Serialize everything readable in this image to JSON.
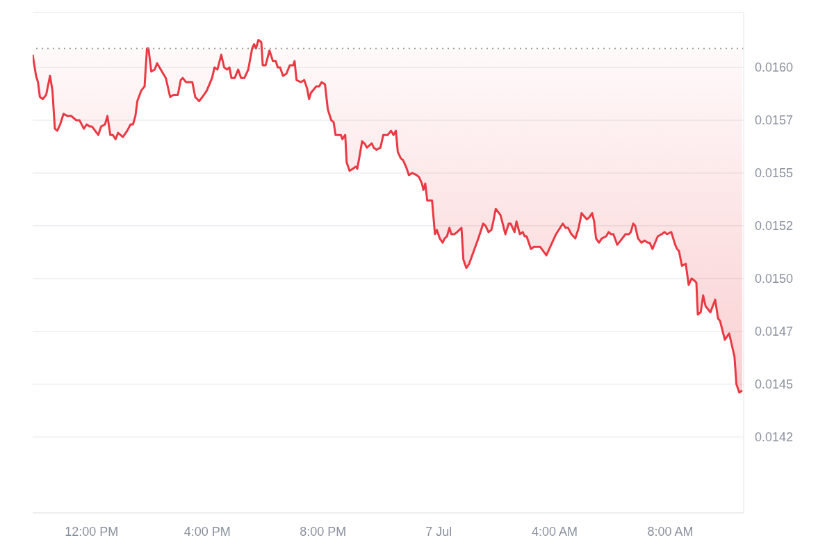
{
  "chart_data": {
    "type": "line",
    "x": [
      "--07-06T09:58",
      "--07-06T10:05",
      "--07-06T10:09",
      "--07-06T10:13",
      "--07-06T10:19",
      "--07-06T10:26",
      "--07-06T10:34",
      "--07-06T10:39",
      "--07-06T10:44",
      "--07-06T10:49",
      "--07-06T10:55",
      "--07-06T11:02",
      "--07-06T11:10",
      "--07-06T11:18",
      "--07-06T11:28",
      "--07-06T11:35",
      "--07-06T11:44",
      "--07-06T11:50",
      "--07-06T11:56",
      "--07-06T12:01",
      "--07-06T12:14",
      "--07-06T12:20",
      "--07-06T12:28",
      "--07-06T12:33",
      "--07-06T12:39",
      "--07-06T12:44",
      "--07-06T12:50",
      "--07-06T12:55",
      "--07-06T13:05",
      "--07-06T13:14",
      "--07-06T13:21",
      "--07-06T13:26",
      "--07-06T13:31",
      "--07-06T13:35",
      "--07-06T13:43",
      "--07-06T13:50",
      "--07-06T13:55",
      "--07-06T13:58",
      "--07-06T14:04",
      "--07-06T14:11",
      "--07-06T14:16",
      "--07-06T14:26",
      "--07-06T14:34",
      "--07-06T14:43",
      "--07-06T14:50",
      "--07-06T14:59",
      "--07-06T15:05",
      "--07-06T15:09",
      "--07-06T15:16",
      "--07-06T15:29",
      "--07-06T15:35",
      "--07-06T15:43",
      "--07-06T15:50",
      "--07-06T15:59",
      "--07-06T16:10",
      "--07-06T16:15",
      "--07-06T16:21",
      "--07-06T16:29",
      "--07-06T16:35",
      "--07-06T16:41",
      "--07-06T16:46",
      "--07-06T16:50",
      "--07-06T16:57",
      "--07-06T17:04",
      "--07-06T17:10",
      "--07-06T17:17",
      "--07-06T17:25",
      "--07-06T17:33",
      "--07-06T17:37",
      "--07-06T17:41",
      "--07-06T17:46",
      "--07-06T17:52",
      "--07-06T17:55",
      "--07-06T18:01",
      "--07-06T18:09",
      "--07-06T18:16",
      "--07-06T18:22",
      "--07-06T18:26",
      "--07-06T18:31",
      "--07-06T18:37",
      "--07-06T18:44",
      "--07-06T18:51",
      "--07-06T18:58",
      "--07-06T19:01",
      "--07-06T19:05",
      "--07-06T19:14",
      "--07-06T19:21",
      "--07-06T19:27",
      "--07-06T19:31",
      "--07-06T19:35",
      "--07-06T19:46",
      "--07-06T19:52",
      "--07-06T19:57",
      "--07-06T20:04",
      "--07-06T20:10",
      "--07-06T20:17",
      "--07-06T20:22",
      "--07-06T20:26",
      "--07-06T20:32",
      "--07-06T20:37",
      "--07-06T20:40",
      "--07-06T20:46",
      "--07-06T20:49",
      "--07-06T20:55",
      "--07-06T21:02",
      "--07-06T21:08",
      "--07-06T21:11",
      "--07-06T21:15",
      "--07-06T21:21",
      "--07-06T21:26",
      "--07-06T21:31",
      "--07-06T21:41",
      "--07-06T21:45",
      "--07-06T21:51",
      "--07-06T21:59",
      "--07-06T22:05",
      "--07-06T22:14",
      "--07-06T22:21",
      "--07-06T22:26",
      "--07-06T22:31",
      "--07-06T22:35",
      "--07-06T22:41",
      "--07-06T22:46",
      "--07-06T22:52",
      "--07-06T22:58",
      "--07-06T23:05",
      "--07-06T23:14",
      "--07-06T23:19",
      "--07-06T23:25",
      "--07-06T23:28",
      "--07-06T23:32",
      "--07-06T23:36",
      "--07-06T23:46",
      "--07-06T23:52",
      "--07-06T23:56",
      "--07-07T00:02",
      "--07-07T00:08",
      "--07-07T00:12",
      "--07-07T00:17",
      "--07-07T00:22",
      "--07-07T00:26",
      "--07-07T00:32",
      "--07-07T00:38",
      "--07-07T00:47",
      "--07-07T00:51",
      "--07-07T00:57",
      "--07-07T01:03",
      "--07-07T01:14",
      "--07-07T01:22",
      "--07-07T01:32",
      "--07-07T01:37",
      "--07-07T01:43",
      "--07-07T01:49",
      "--07-07T01:53",
      "--07-07T01:58",
      "--07-07T02:08",
      "--07-07T02:18",
      "--07-07T02:25",
      "--07-07T02:29",
      "--07-07T02:37",
      "--07-07T02:41",
      "--07-07T02:48",
      "--07-07T02:54",
      "--07-07T02:58",
      "--07-07T03:02",
      "--07-07T03:11",
      "--07-07T03:17",
      "--07-07T03:30",
      "--07-07T03:43",
      "--07-07T03:53",
      "--07-07T04:03",
      "--07-07T04:17",
      "--07-07T04:23",
      "--07-07T04:28",
      "--07-07T04:35",
      "--07-07T04:43",
      "--07-07T04:50",
      "--07-07T04:56",
      "--07-07T05:07",
      "--07-07T05:12",
      "--07-07T05:18",
      "--07-07T05:22",
      "--07-07T05:26",
      "--07-07T05:32",
      "--07-07T05:38",
      "--07-07T05:47",
      "--07-07T05:52",
      "--07-07T05:57",
      "--07-07T06:02",
      "--07-07T06:10",
      "--07-07T06:17",
      "--07-07T06:27",
      "--07-07T06:34",
      "--07-07T06:38",
      "--07-07T06:43",
      "--07-07T06:47",
      "--07-07T06:53",
      "--07-07T07:00",
      "--07-07T07:07",
      "--07-07T07:13",
      "--07-07T07:17",
      "--07-07T07:23",
      "--07-07T07:34",
      "--07-07T07:42",
      "--07-07T07:48",
      "--07-07T07:53",
      "--07-07T08:02",
      "--07-07T08:10",
      "--07-07T08:14",
      "--07-07T08:18",
      "--07-07T08:24",
      "--07-07T08:32",
      "--07-07T08:38",
      "--07-07T08:44",
      "--07-07T08:50",
      "--07-07T08:54",
      "--07-07T08:57",
      "--07-07T09:03",
      "--07-07T09:08",
      "--07-07T09:13",
      "--07-07T09:23",
      "--07-07T09:33",
      "--07-07T09:39",
      "--07-07T09:43",
      "--07-07T09:53",
      "--07-07T10:02",
      "--07-07T10:08",
      "--07-07T10:13",
      "--07-07T10:17",
      "--07-07T10:23",
      "--07-07T10:29"
    ],
    "series": [
      {
        "color": "#ea3943",
        "values": [
          0.01606,
          0.01596,
          0.01593,
          0.01586,
          0.01585,
          0.01587,
          0.01596,
          0.01589,
          0.01571,
          0.0157,
          0.01573,
          0.01578,
          0.01577,
          0.01577,
          0.01575,
          0.01575,
          0.01571,
          0.01573,
          0.01572,
          0.01572,
          0.01568,
          0.01572,
          0.01573,
          0.01577,
          0.01568,
          0.01568,
          0.01566,
          0.01569,
          0.01567,
          0.0157,
          0.01573,
          0.01573,
          0.01577,
          0.01584,
          0.01589,
          0.01591,
          0.01609,
          0.01609,
          0.01598,
          0.01599,
          0.01602,
          0.01598,
          0.01595,
          0.01586,
          0.01587,
          0.01587,
          0.01594,
          0.01595,
          0.01593,
          0.01593,
          0.01586,
          0.01584,
          0.01586,
          0.01589,
          0.01595,
          0.016,
          0.01599,
          0.01606,
          0.016,
          0.01599,
          0.016,
          0.01595,
          0.01595,
          0.01599,
          0.01595,
          0.01595,
          0.01599,
          0.01609,
          0.01611,
          0.01609,
          0.01613,
          0.01612,
          0.01601,
          0.01601,
          0.01608,
          0.01603,
          0.01603,
          0.016,
          0.016,
          0.01596,
          0.01597,
          0.01601,
          0.01601,
          0.01603,
          0.01594,
          0.01593,
          0.01594,
          0.0159,
          0.01585,
          0.01588,
          0.01591,
          0.01591,
          0.01593,
          0.01592,
          0.0158,
          0.01575,
          0.01574,
          0.01568,
          0.01568,
          0.01568,
          0.01566,
          0.01568,
          0.01555,
          0.01551,
          0.01552,
          0.01553,
          0.01552,
          0.01557,
          0.01565,
          0.01564,
          0.01562,
          0.01564,
          0.01562,
          0.01561,
          0.01562,
          0.01568,
          0.01568,
          0.0157,
          0.01568,
          0.0157,
          0.0156,
          0.01557,
          0.01556,
          0.01553,
          0.01549,
          0.0155,
          0.01549,
          0.01548,
          0.01545,
          0.01542,
          0.01545,
          0.01537,
          0.01537,
          0.01521,
          0.01523,
          0.01519,
          0.01517,
          0.01519,
          0.0152,
          0.01524,
          0.01521,
          0.01521,
          0.01522,
          0.01524,
          0.01509,
          0.01505,
          0.01507,
          0.01514,
          0.01519,
          0.01526,
          0.01525,
          0.01522,
          0.01523,
          0.01527,
          0.01533,
          0.0153,
          0.01521,
          0.01526,
          0.01526,
          0.01522,
          0.01527,
          0.01521,
          0.01522,
          0.0152,
          0.0152,
          0.01514,
          0.01515,
          0.01515,
          0.01511,
          0.01516,
          0.01521,
          0.01526,
          0.01524,
          0.01524,
          0.01521,
          0.01519,
          0.01524,
          0.01531,
          0.01528,
          0.01529,
          0.01531,
          0.01527,
          0.01519,
          0.01517,
          0.01519,
          0.0152,
          0.01522,
          0.01521,
          0.01521,
          0.01516,
          0.01518,
          0.01521,
          0.01521,
          0.01522,
          0.01526,
          0.01525,
          0.01519,
          0.01517,
          0.01518,
          0.01517,
          0.01517,
          0.01514,
          0.0152,
          0.01521,
          0.01522,
          0.01521,
          0.01522,
          0.01516,
          0.01514,
          0.01513,
          0.01506,
          0.01507,
          0.01497,
          0.015,
          0.01499,
          0.01498,
          0.01483,
          0.01484,
          0.01492,
          0.01487,
          0.01484,
          0.0149,
          0.01481,
          0.0148,
          0.01471,
          0.01474,
          0.01468,
          0.01463,
          0.0145,
          0.01446,
          0.01447
        ]
      }
    ],
    "xlim": [
      "--07-06T09:58",
      "--07-07T10:32"
    ],
    "xticks": [
      {
        "value": "--07-06T12:00",
        "label": "12:00 PM"
      },
      {
        "value": "--07-06T16:00",
        "label": "4:00 PM"
      },
      {
        "value": "--07-06T20:00",
        "label": "8:00 PM"
      },
      {
        "value": "--07-07T00:00",
        "label": "7 Jul"
      },
      {
        "value": "--07-07T04:00",
        "label": "4:00 AM"
      },
      {
        "value": "--07-07T08:00",
        "label": "8:00 AM"
      }
    ],
    "ylim": [
      0.01389,
      0.01626
    ],
    "yticks": [
      {
        "value": 0.01425,
        "label": "0.0142"
      },
      0.0145,
      {
        "value": 0.01475,
        "label": "0.0147"
      },
      {
        "value": 0.015,
        "label": "0.0150"
      },
      {
        "value": 0.01525,
        "label": "0.0152"
      },
      0.0155,
      {
        "value": 0.01575,
        "label": "0.0157"
      },
      {
        "value": 0.016,
        "label": "0.0160"
      }
    ],
    "ref_lines": [
      {
        "axis": "y",
        "value": 0.01609,
        "color": "#999999",
        "line_style": "dotted"
      }
    ],
    "grid": "y",
    "legend": false
  }
}
